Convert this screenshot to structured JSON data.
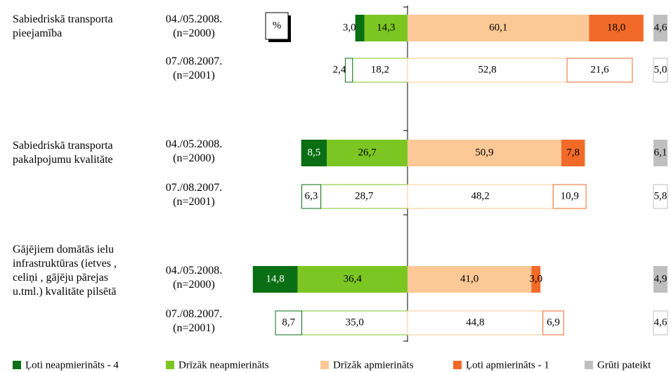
{
  "chart_data": {
    "type": "diverging_bar",
    "unit_label": "%",
    "groups": [
      "Sabiedriskā transporta pieejamība",
      "Sabiedriskā transporta pakalpojumu kvalitāte",
      "Gājējiem domātās ielu infrastruktūras (ietves , celiņi , gājēju pārejas u.tml.) kvalitāte pilsētā"
    ],
    "categories": [
      "04./05.2008. (n=2000)",
      "07./08.2007. (n=2001)",
      "04./05.2008. (n=2000)",
      "07./08.2007. (n=2001)",
      "04./05.2008. (n=2000)",
      "07./08.2007. (n=2001)"
    ],
    "series": [
      {
        "name": "Ļoti neapmierināts - 4",
        "color": "#0a6e14",
        "values": [
          3.0,
          2.4,
          8.5,
          6.3,
          14.8,
          8.7
        ],
        "value_labels": [
          "3,0",
          "2,4",
          "8,5",
          "6,3",
          "14,8",
          "8,7"
        ]
      },
      {
        "name": "Drīzāk neapmierināts",
        "color": "#7cc623",
        "values": [
          14.3,
          18.2,
          26.7,
          28.7,
          36.4,
          35.0
        ],
        "value_labels": [
          "14,3",
          "18,2",
          "26,7",
          "28,7",
          "36,4",
          "35,0"
        ]
      },
      {
        "name": "Drīzāk apmierināts",
        "color": "#fbc896",
        "values": [
          60.1,
          52.8,
          50.9,
          48.2,
          41.0,
          44.8
        ],
        "value_labels": [
          "60,1",
          "52,8",
          "50,9",
          "48,2",
          "41,0",
          "44,8"
        ]
      },
      {
        "name": "Ļoti apmierināts - 1",
        "color": "#f26a28",
        "values": [
          18.0,
          21.6,
          7.8,
          10.9,
          3.0,
          6.9
        ],
        "value_labels": [
          "18,0",
          "21,6",
          "7,8",
          "10,9",
          "3,0",
          "6,9"
        ]
      },
      {
        "name": "Grūti pateikt",
        "color": "#bfbfbf",
        "values": [
          4.6,
          5.0,
          6.1,
          5.8,
          4.9,
          4.6
        ],
        "value_labels": [
          "4,6",
          "5,0",
          "6,1",
          "5,8",
          "4,9",
          "4,6"
        ]
      }
    ]
  }
}
